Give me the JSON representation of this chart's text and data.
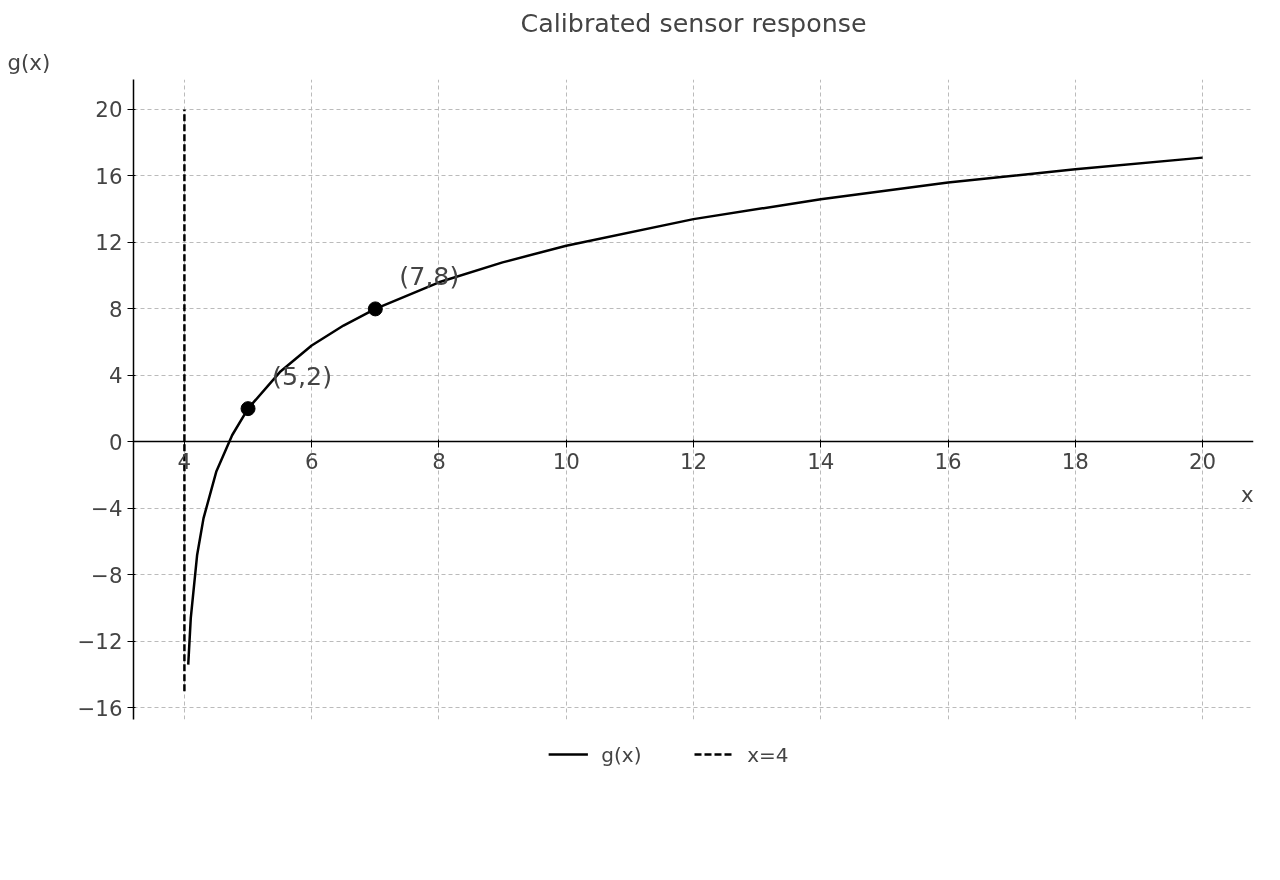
{
  "chart_data": {
    "type": "line",
    "title": "Calibrated sensor response",
    "xlabel": "x",
    "ylabel": "g(x)",
    "series": [
      {
        "name": "g(x)",
        "color": "#000000",
        "line_style": "solid",
        "x": [
          4.06,
          4.1,
          4.2,
          4.3,
          4.5,
          4.75,
          5,
          5.5,
          6,
          6.5,
          7,
          8,
          9,
          10,
          12,
          14,
          16,
          18,
          20
        ],
        "values": [
          -13.4,
          -10.6,
          -6.8,
          -4.6,
          -1.8,
          0.4,
          2,
          4.2,
          5.8,
          7,
          8,
          9.6,
          10.8,
          11.8,
          13.4,
          14.6,
          15.6,
          16.4,
          17.1
        ]
      },
      {
        "name": "x=4",
        "color": "#000000",
        "line_style": "dashed",
        "x": [
          4,
          4
        ],
        "values": [
          -15,
          20
        ]
      },
      {
        "type": "scatter",
        "color": "#000000",
        "marker": "circle",
        "x": [
          5,
          7
        ],
        "values": [
          2,
          8
        ]
      }
    ],
    "annotations": [
      {
        "text": "(5,2)",
        "x": 5,
        "y": 2
      },
      {
        "text": "(7,8)",
        "x": 7,
        "y": 8
      }
    ],
    "xlim": [
      3.2,
      20.8
    ],
    "ylim": [
      -16.7,
      21.8
    ],
    "xticks": [
      4,
      6,
      8,
      10,
      12,
      14,
      16,
      18,
      20
    ],
    "yticks": [
      -16,
      -12,
      -8,
      -4,
      0,
      4,
      8,
      12,
      16,
      20
    ],
    "grid": true,
    "legend": "bottom"
  }
}
